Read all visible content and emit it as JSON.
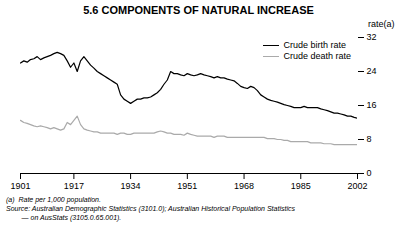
{
  "chart_data": {
    "type": "line",
    "title": "5.6   COMPONENTS OF NATURAL INCREASE",
    "ylabel": "rate(a)",
    "annotations": [
      "(a)  Rate per 1,000 population.",
      "Source: Australian Demographic Statistics (3101.0); Australian Historical Population Statistics",
      "        — on AusStats (3105.0.65.001)."
    ],
    "legend": "upper right",
    "grid": false,
    "xlim": [
      1901,
      2002
    ],
    "xticks": [
      1901,
      1917,
      1934,
      1951,
      1968,
      1985,
      2002
    ],
    "ylim": [
      0,
      32
    ],
    "yticks": [
      0,
      8,
      16,
      24,
      32
    ],
    "x": [
      1901,
      1902,
      1903,
      1904,
      1905,
      1906,
      1907,
      1908,
      1909,
      1910,
      1911,
      1912,
      1913,
      1914,
      1915,
      1916,
      1917,
      1918,
      1919,
      1920,
      1921,
      1922,
      1923,
      1924,
      1925,
      1926,
      1927,
      1928,
      1929,
      1930,
      1931,
      1932,
      1933,
      1934,
      1935,
      1936,
      1937,
      1938,
      1939,
      1940,
      1941,
      1942,
      1943,
      1944,
      1945,
      1946,
      1947,
      1948,
      1949,
      1950,
      1951,
      1952,
      1953,
      1954,
      1955,
      1956,
      1957,
      1958,
      1959,
      1960,
      1961,
      1962,
      1963,
      1964,
      1965,
      1966,
      1967,
      1968,
      1969,
      1970,
      1971,
      1972,
      1973,
      1974,
      1975,
      1976,
      1977,
      1978,
      1979,
      1980,
      1981,
      1982,
      1983,
      1984,
      1985,
      1986,
      1987,
      1988,
      1989,
      1990,
      1991,
      1992,
      1993,
      1994,
      1995,
      1996,
      1997,
      1998,
      1999,
      2000,
      2001,
      2002
    ],
    "series": [
      {
        "name": "Crude birth rate",
        "color": "#000000",
        "values": [
          26.0,
          26.5,
          26.2,
          26.8,
          27.0,
          27.5,
          26.8,
          27.2,
          27.5,
          27.8,
          28.2,
          28.5,
          28.2,
          27.8,
          26.5,
          25.0,
          26.0,
          24.0,
          26.5,
          27.5,
          26.5,
          25.5,
          24.8,
          24.0,
          23.5,
          23.0,
          22.5,
          22.0,
          21.5,
          21.0,
          18.5,
          17.5,
          17.0,
          16.5,
          17.0,
          17.5,
          17.5,
          17.8,
          17.8,
          18.0,
          18.5,
          19.0,
          19.8,
          21.0,
          22.0,
          24.0,
          23.5,
          23.5,
          23.2,
          23.0,
          23.5,
          23.2,
          23.0,
          23.2,
          23.5,
          23.2,
          23.0,
          22.8,
          22.5,
          22.8,
          22.5,
          22.5,
          22.2,
          22.0,
          21.8,
          21.2,
          20.5,
          20.2,
          20.0,
          20.5,
          20.2,
          19.5,
          18.5,
          18.0,
          17.5,
          17.2,
          17.0,
          16.8,
          16.5,
          16.2,
          16.0,
          15.8,
          15.5,
          15.5,
          15.5,
          15.8,
          15.5,
          15.5,
          15.5,
          15.5,
          15.2,
          15.0,
          14.8,
          14.5,
          14.2,
          14.2,
          14.0,
          13.8,
          13.5,
          13.5,
          13.2,
          13.0
        ]
      },
      {
        "name": "Crude death rate",
        "color": "#aaaaaa",
        "values": [
          12.5,
          12.0,
          11.8,
          11.5,
          11.2,
          11.0,
          11.2,
          11.0,
          10.8,
          10.5,
          10.8,
          10.5,
          10.2,
          10.5,
          12.0,
          11.5,
          12.5,
          13.5,
          11.5,
          10.5,
          10.2,
          10.0,
          9.8,
          9.8,
          9.5,
          9.5,
          9.5,
          9.5,
          9.5,
          9.2,
          9.5,
          9.5,
          9.2,
          9.2,
          9.5,
          9.5,
          9.5,
          9.5,
          9.5,
          9.5,
          9.5,
          9.8,
          10.0,
          9.8,
          9.5,
          9.5,
          9.2,
          9.2,
          9.2,
          9.0,
          9.5,
          9.2,
          9.0,
          8.8,
          8.8,
          8.8,
          8.8,
          8.8,
          8.5,
          8.8,
          8.8,
          8.8,
          8.5,
          8.5,
          8.5,
          8.5,
          8.5,
          8.5,
          8.5,
          8.5,
          8.5,
          8.5,
          8.5,
          8.5,
          8.2,
          8.2,
          8.2,
          8.0,
          8.0,
          7.8,
          7.8,
          7.5,
          7.5,
          7.5,
          7.5,
          7.5,
          7.5,
          7.2,
          7.2,
          7.2,
          7.2,
          7.0,
          7.0,
          7.0,
          6.8,
          6.8,
          6.8,
          6.8,
          6.8,
          6.8,
          6.8,
          6.8
        ]
      }
    ]
  }
}
